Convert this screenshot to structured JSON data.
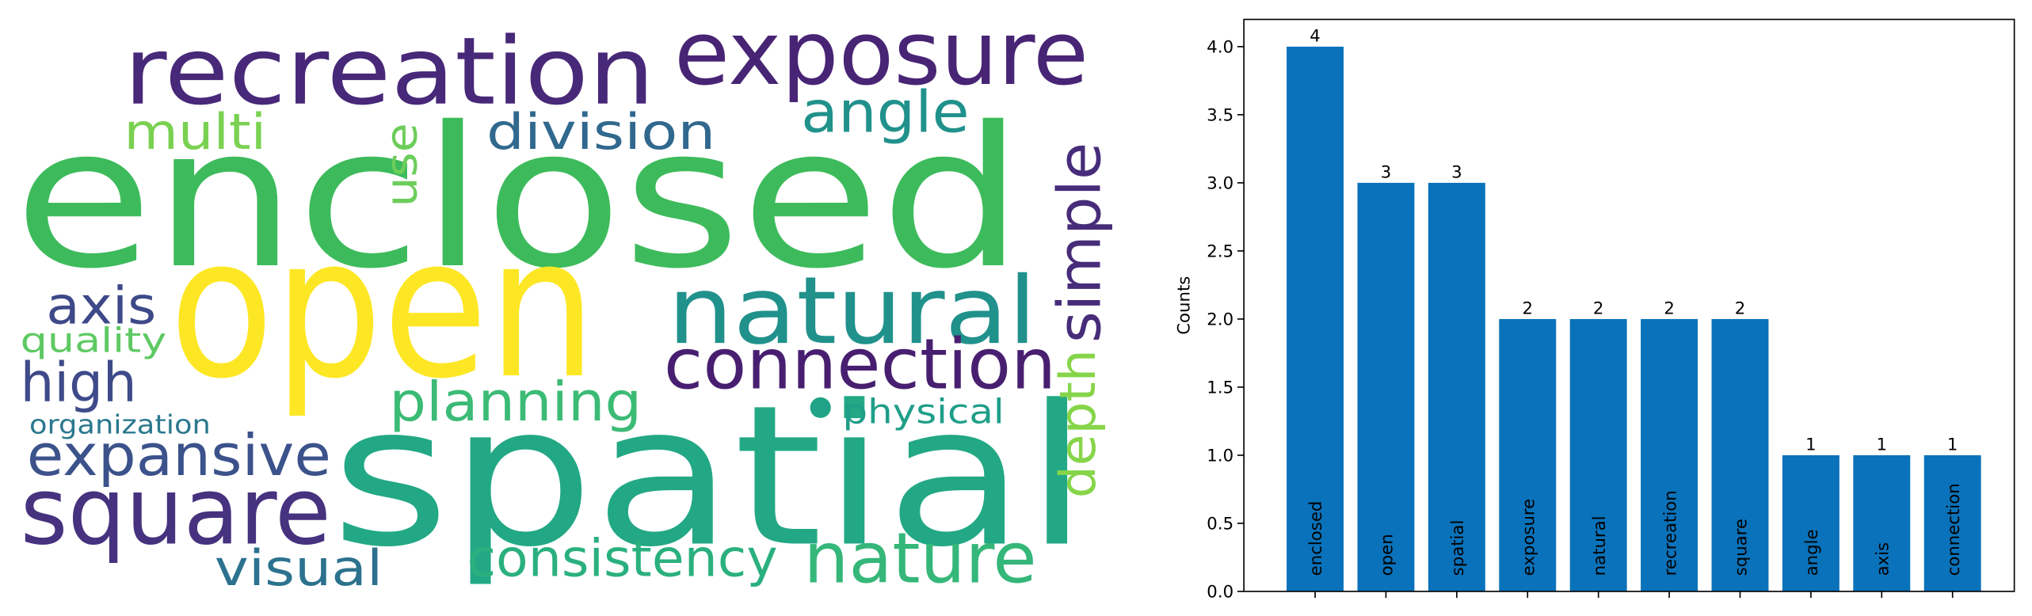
{
  "chart_data": [
    {
      "type": "wordcloud",
      "words": [
        "enclosed",
        "open",
        "spatial",
        "recreation",
        "exposure",
        "natural",
        "connection",
        "square",
        "nature",
        "consistency",
        "visual",
        "expansive",
        "planning",
        "high",
        "axis",
        "quality",
        "organization",
        "physical",
        "multi",
        "division",
        "angle",
        "use",
        "simple",
        "depth"
      ]
    },
    {
      "type": "bar",
      "ylabel": "Counts",
      "categories": [
        "enclosed",
        "open",
        "spatial",
        "exposure",
        "natural",
        "recreation",
        "square",
        "angle",
        "axis",
        "connection"
      ],
      "values": [
        4,
        3,
        3,
        2,
        2,
        2,
        2,
        1,
        1,
        1
      ],
      "color": "#0a72ba",
      "ylim": [
        0,
        4.2
      ],
      "yticks": [
        {
          "value": 0,
          "label": "0.0"
        },
        0.5,
        {
          "value": 1,
          "label": "1.0"
        },
        1.5,
        {
          "value": 2,
          "label": "2.0"
        },
        2.5,
        {
          "value": 3,
          "label": "3.0"
        },
        3.5,
        {
          "value": 4,
          "label": "4.0"
        }
      ]
    }
  ]
}
